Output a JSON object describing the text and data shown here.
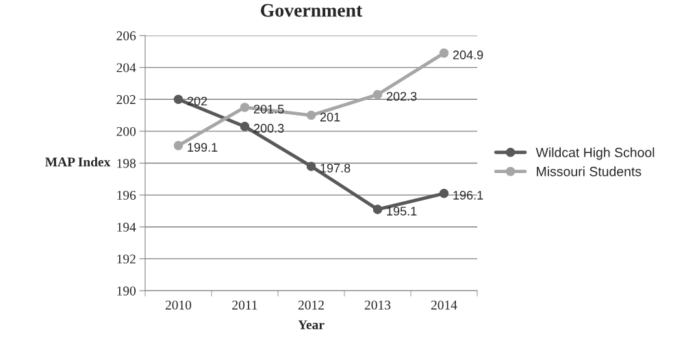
{
  "chart_data": {
    "type": "line",
    "title": "Government",
    "xlabel": "Year",
    "ylabel": "MAP Index",
    "categories": [
      "2010",
      "2011",
      "2012",
      "2013",
      "2014"
    ],
    "series": [
      {
        "name": "Wildcat High School",
        "color": "#595959",
        "values": [
          202,
          200.3,
          197.8,
          195.1,
          196.1
        ]
      },
      {
        "name": "Missouri Students",
        "color": "#a6a6a6",
        "values": [
          199.1,
          201.5,
          201,
          202.3,
          204.9
        ]
      }
    ],
    "ylim": [
      190,
      206
    ],
    "yticks": [
      190,
      192,
      194,
      196,
      198,
      200,
      202,
      204,
      206
    ],
    "grid": "y",
    "legend": "right",
    "marker": "circle",
    "line_style": "solid",
    "data_labels": true
  }
}
